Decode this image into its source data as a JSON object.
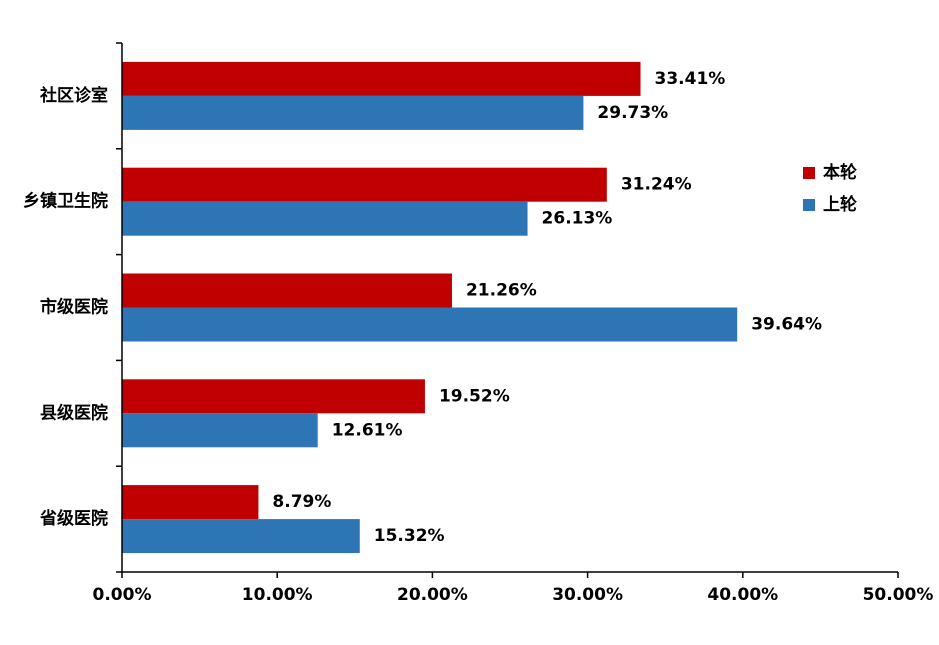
{
  "chart_data": {
    "type": "bar",
    "orientation": "horizontal",
    "categories": [
      "社区诊室",
      "乡镇卫生院",
      "市级医院",
      "县级医院",
      "省级医院"
    ],
    "series": [
      {
        "name": "本轮",
        "color": "#C00000",
        "values": [
          33.41,
          31.24,
          21.26,
          19.52,
          8.79
        ],
        "labels": [
          "33.41%",
          "31.24%",
          "21.26%",
          "19.52%",
          "8.79%"
        ]
      },
      {
        "name": "上轮",
        "color": "#2E75B6",
        "values": [
          29.73,
          26.13,
          39.64,
          12.61,
          15.32
        ],
        "labels": [
          "29.73%",
          "26.13%",
          "39.64%",
          "12.61%",
          "15.32%"
        ]
      }
    ],
    "xlim": [
      0,
      50
    ],
    "xticks": [
      0,
      10,
      20,
      30,
      40,
      50
    ],
    "xtick_labels": [
      "0.00%",
      "10.00%",
      "20.00%",
      "30.00%",
      "40.00%",
      "50.00%"
    ],
    "title": "",
    "xlabel": "",
    "ylabel": "",
    "grid": false,
    "legend_position": "right"
  }
}
